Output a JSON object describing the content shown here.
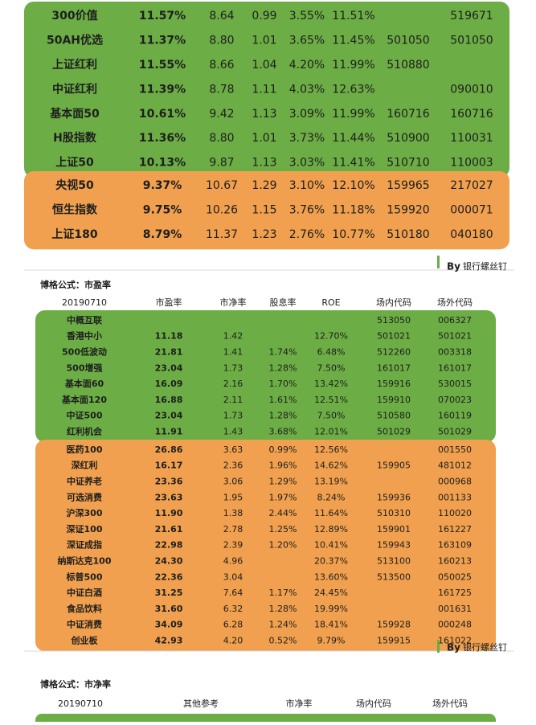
{
  "tables": [
    {
      "groups": [
        {
          "color": "#6cad45",
          "rows": [
            [
              "300价值",
              "11.57%",
              "8.64",
              "0.99",
              "3.55%",
              "11.51%",
              null,
              "519671"
            ],
            [
              "50AH优选",
              "11.37%",
              "8.80",
              "1.01",
              "3.65%",
              "11.45%",
              "501050",
              "501050"
            ],
            [
              "上证红利",
              "11.55%",
              "8.66",
              "1.04",
              "4.20%",
              "11.99%",
              "510880",
              null
            ],
            [
              "中证红利",
              "11.39%",
              "8.78",
              "1.11",
              "4.03%",
              "12.63%",
              null,
              "090010"
            ],
            [
              "基本面50",
              "10.61%",
              "9.42",
              "1.13",
              "3.09%",
              "11.99%",
              "160716",
              "160716"
            ],
            [
              "H股指数",
              "11.36%",
              "8.80",
              "1.01",
              "3.73%",
              "11.44%",
              "510900",
              "110031"
            ],
            [
              "上证50",
              "10.13%",
              "9.87",
              "1.13",
              "3.03%",
              "11.41%",
              "510710",
              "110003"
            ]
          ]
        },
        {
          "color": "#f0a04e",
          "rows": [
            [
              "央视50",
              "9.37%",
              "10.67",
              "1.29",
              "3.10%",
              "12.10%",
              "159965",
              "217027"
            ],
            [
              "恒生指数",
              "9.75%",
              "10.26",
              "1.15",
              "3.76%",
              "11.18%",
              "159920",
              "000071"
            ],
            [
              "上证180",
              "8.79%",
              "11.37",
              "1.23",
              "2.76%",
              "10.77%",
              "510180",
              "040180"
            ]
          ]
        }
      ]
    },
    {
      "title": "博格公式：市盈率",
      "header": [
        "20190710",
        "市盈率",
        "市净率",
        "股息率",
        "ROE",
        "场内代码",
        "场外代码"
      ],
      "groups": [
        {
          "color": "#6cad45",
          "rows": [
            [
              "中概互联",
              null,
              null,
              null,
              null,
              "513050",
              "006327"
            ],
            [
              "香港中小",
              "11.18",
              "1.42",
              null,
              "12.70%",
              "501021",
              "501021"
            ],
            [
              "500低波动",
              "21.81",
              "1.41",
              "1.74%",
              "6.48%",
              "512260",
              "003318"
            ],
            [
              "500增强",
              "23.04",
              "1.73",
              "1.28%",
              "7.50%",
              "161017",
              "161017"
            ],
            [
              "基本面60",
              "16.09",
              "2.16",
              "1.70%",
              "13.42%",
              "159916",
              "530015"
            ],
            [
              "基本面120",
              "16.88",
              "2.11",
              "1.61%",
              "12.51%",
              "159910",
              "070023"
            ],
            [
              "中证500",
              "23.04",
              "1.73",
              "1.28%",
              "7.50%",
              "510580",
              "160119"
            ],
            [
              "红利机会",
              "11.91",
              "1.43",
              "3.68%",
              "12.01%",
              "501029",
              "501029"
            ]
          ]
        },
        {
          "color": "#f0a04e",
          "rows": [
            [
              "医药100",
              "26.86",
              "3.63",
              "0.99%",
              "12.56%",
              null,
              "001550"
            ],
            [
              "深红利",
              "16.17",
              "2.36",
              "1.96%",
              "14.62%",
              "159905",
              "481012"
            ],
            [
              "中证养老",
              "23.36",
              "3.06",
              "1.29%",
              "13.19%",
              null,
              "000968"
            ],
            [
              "可选消费",
              "23.63",
              "1.95",
              "1.97%",
              "8.24%",
              "159936",
              "001133"
            ],
            [
              "沪深300",
              "11.90",
              "1.38",
              "2.44%",
              "11.64%",
              "510310",
              "110020"
            ],
            [
              "深证100",
              "21.61",
              "2.78",
              "1.25%",
              "12.89%",
              "159901",
              "161227"
            ],
            [
              "深证成指",
              "22.98",
              "2.39",
              "1.20%",
              "10.41%",
              "159943",
              "163109"
            ],
            [
              "纳斯达克100",
              "24.30",
              "4.96",
              null,
              "20.37%",
              "513100",
              "160213"
            ],
            [
              "标普500",
              "22.36",
              "3.04",
              null,
              "13.60%",
              "513500",
              "050025"
            ],
            [
              "中证白酒",
              "31.25",
              "7.64",
              "1.17%",
              "24.45%",
              null,
              "161725"
            ],
            [
              "食品饮料",
              "31.60",
              "6.32",
              "1.28%",
              "19.99%",
              null,
              "001631"
            ],
            [
              "中证消费",
              "34.09",
              "6.28",
              "1.24%",
              "18.41%",
              "159928",
              "000248"
            ],
            [
              "创业板",
              "42.93",
              "4.20",
              "0.52%",
              "9.79%",
              "159915",
              "161022"
            ]
          ]
        }
      ]
    },
    {
      "title": "博格公式：市净率",
      "header": [
        "20190710",
        "其他参考",
        "市净率",
        "场内代码",
        "场外代码"
      ]
    }
  ],
  "signature": {
    "prefix": "By",
    "author": "银行螺丝钉"
  }
}
